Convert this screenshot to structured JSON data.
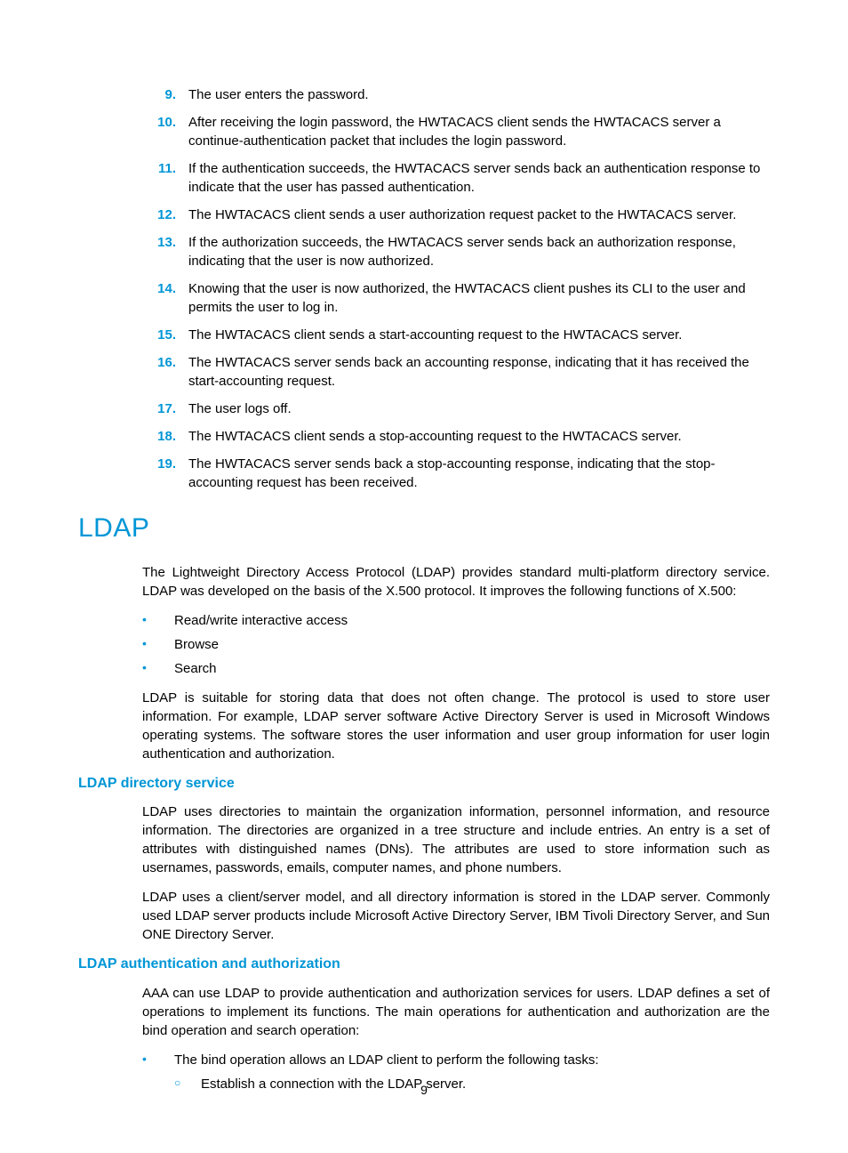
{
  "colors": {
    "accent": "#0096d6",
    "text": "#000000",
    "background": "#ffffff"
  },
  "numbered_list": {
    "items": [
      {
        "num": "9.",
        "text": "The user enters the password."
      },
      {
        "num": "10.",
        "text": "After receiving the login password, the HWTACACS client sends the HWTACACS server a continue-authentication packet that includes the login password."
      },
      {
        "num": "11.",
        "text": "If the authentication succeeds, the HWTACACS server sends back an authentication response to indicate that the user has passed authentication."
      },
      {
        "num": "12.",
        "text": "The HWTACACS client sends a user authorization request packet to the HWTACACS server."
      },
      {
        "num": "13.",
        "text": "If the authorization succeeds, the HWTACACS server sends back an authorization response, indicating that the user is now authorized."
      },
      {
        "num": "14.",
        "text": "Knowing that the user is now authorized, the HWTACACS client pushes its CLI to the user and permits the user to log in."
      },
      {
        "num": "15.",
        "text": "The HWTACACS client sends a start-accounting request to the HWTACACS server."
      },
      {
        "num": "16.",
        "text": "The HWTACACS server sends back an accounting response, indicating that it has received the start-accounting request."
      },
      {
        "num": "17.",
        "text": "The user logs off."
      },
      {
        "num": "18.",
        "text": "The HWTACACS client sends a stop-accounting request to the HWTACACS server."
      },
      {
        "num": "19.",
        "text": "The HWTACACS server sends back a stop-accounting response, indicating that the stop-accounting request has been received."
      }
    ]
  },
  "section": {
    "heading": "LDAP",
    "intro": "The Lightweight Directory Access Protocol (LDAP) provides standard multi-platform directory service. LDAP was developed on the basis of the X.500 protocol. It improves the following functions of X.500:",
    "bullets": [
      "Read/write interactive access",
      "Browse",
      "Search"
    ],
    "para2": "LDAP is suitable for storing data that does not often change. The protocol is used to store user information. For example, LDAP server software Active Directory Server is used in Microsoft Windows operating systems. The software stores the user information and user group information for user login authentication and authorization.",
    "sub1": {
      "heading": "LDAP directory service",
      "para1": "LDAP uses directories to maintain the organization information, personnel information, and resource information. The directories are organized in a tree structure and include entries. An entry is a set of attributes with distinguished names (DNs). The attributes are used to store information such as usernames, passwords, emails, computer names, and phone numbers.",
      "para2": "LDAP uses a client/server model, and all directory information is stored in the LDAP server. Commonly used LDAP server products include Microsoft Active Directory Server, IBM Tivoli Directory Server, and Sun ONE Directory Server."
    },
    "sub2": {
      "heading": "LDAP authentication and authorization",
      "para1": "AAA can use LDAP to provide authentication and authorization services for users. LDAP defines a set of operations to implement its functions. The main operations for authentication and authorization are the bind operation and search operation:",
      "bullet1": "The bind operation allows an LDAP client to perform the following tasks:",
      "sub_bullet1": "Establish a connection with the LDAP server."
    }
  },
  "page_number": "9",
  "bullet_glyph": "•",
  "sub_bullet_glyph": "○"
}
